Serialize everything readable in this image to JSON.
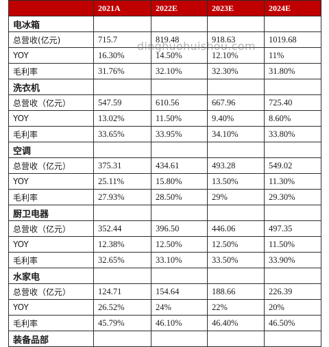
{
  "header": {
    "corner": "",
    "years": [
      "2021A",
      "2022E",
      "2023E",
      "2024E"
    ]
  },
  "watermark": "dinghuohuishou.com",
  "sections": [
    {
      "name": "电冰箱",
      "rows": [
        {
          "label": "总营收(亿元)",
          "values": [
            "715.7",
            "819.48",
            "918.63",
            "1019.68"
          ]
        },
        {
          "label": "YOY",
          "values": [
            "16.30%",
            "14.50%",
            "12.10%",
            "11%"
          ]
        },
        {
          "label": "毛利率",
          "values": [
            "31.76%",
            "32.10%",
            "32.30%",
            "31.80%"
          ]
        }
      ]
    },
    {
      "name": "洗衣机",
      "rows": [
        {
          "label": "总营收（亿元）",
          "values": [
            "547.59",
            "610.56",
            "667.96",
            "725.40"
          ]
        },
        {
          "label": "YOY",
          "values": [
            "13.02%",
            "11.50%",
            "9.40%",
            "8.60%"
          ]
        },
        {
          "label": "毛利率",
          "values": [
            "33.65%",
            "33.95%",
            "34.10%",
            "33.80%"
          ]
        }
      ]
    },
    {
      "name": "空调",
      "rows": [
        {
          "label": "总营收（亿元）",
          "values": [
            "375.31",
            "434.61",
            "493.28",
            "549.02"
          ]
        },
        {
          "label": "YOY",
          "values": [
            "25.11%",
            "15.80%",
            "13.50%",
            "11.30%"
          ]
        },
        {
          "label": "毛利率",
          "values": [
            "27.93%",
            "28.50%",
            "29%",
            "29.30%"
          ]
        }
      ]
    },
    {
      "name": "厨卫电器",
      "rows": [
        {
          "label": "总营收（亿元）",
          "values": [
            "352.44",
            "396.50",
            "446.06",
            "497.35"
          ]
        },
        {
          "label": "YOY",
          "values": [
            "12.38%",
            "12.50%",
            "12.50%",
            "11.50%"
          ]
        },
        {
          "label": "毛利率",
          "values": [
            "32.65%",
            "33.10%",
            "33.50%",
            "33.90%"
          ]
        }
      ]
    },
    {
      "name": "水家电",
      "rows": [
        {
          "label": "总营收（亿元）",
          "values": [
            "124.71",
            "154.64",
            "188.66",
            "226.39"
          ]
        },
        {
          "label": "YOY",
          "values": [
            "26.52%",
            "24%",
            "22%",
            "20%"
          ]
        },
        {
          "label": "毛利率",
          "values": [
            "45.79%",
            "46.10%",
            "46.40%",
            "46.50%"
          ]
        }
      ]
    },
    {
      "name": "装备品部",
      "rows": []
    }
  ]
}
